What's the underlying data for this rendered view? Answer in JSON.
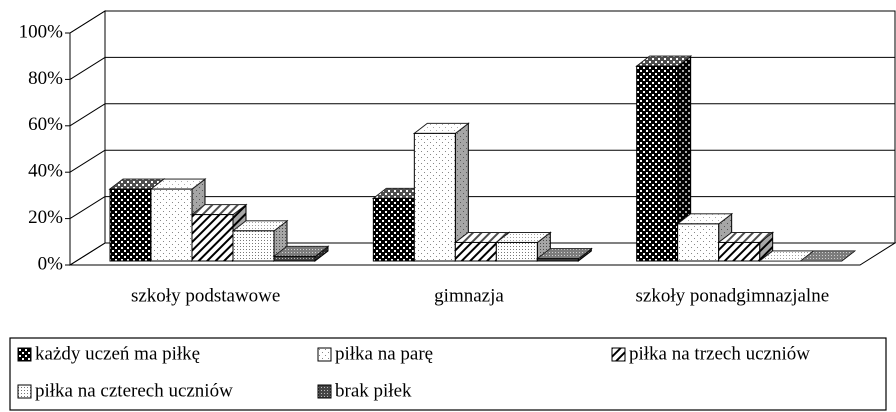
{
  "chart_data": {
    "type": "bar3d",
    "categories": [
      "szkoły podstawowe",
      "gimnazja",
      "szkoły ponadgimnazjalne"
    ],
    "series": [
      {
        "name": "każdy uczeń ma piłkę",
        "color": "#000000",
        "pattern": "checker",
        "values": [
          31,
          27,
          84
        ]
      },
      {
        "name": "piłka na parę",
        "color": "#000000",
        "pattern": "sparse-dots",
        "values": [
          31,
          55,
          16
        ]
      },
      {
        "name": "piłka na trzech uczniów",
        "color": "#000000",
        "pattern": "hatch",
        "values": [
          20,
          8,
          8
        ]
      },
      {
        "name": "piłka na czterech uczniów",
        "color": "#000000",
        "pattern": "fine-dots",
        "values": [
          13,
          8,
          0
        ]
      },
      {
        "name": "brak piłek",
        "color": "#000000",
        "pattern": "dense",
        "values": [
          2,
          1,
          0
        ]
      }
    ],
    "ylim": [
      0,
      100
    ],
    "yticks": [
      {
        "value": 0,
        "label": "0%"
      },
      {
        "value": 20,
        "label": "20%"
      },
      {
        "value": 40,
        "label": "40%"
      },
      {
        "value": 60,
        "label": "60%"
      },
      {
        "value": 80,
        "label": "80%"
      },
      {
        "value": 100,
        "label": "100%"
      }
    ],
    "grid": true,
    "legend": "bottom"
  }
}
